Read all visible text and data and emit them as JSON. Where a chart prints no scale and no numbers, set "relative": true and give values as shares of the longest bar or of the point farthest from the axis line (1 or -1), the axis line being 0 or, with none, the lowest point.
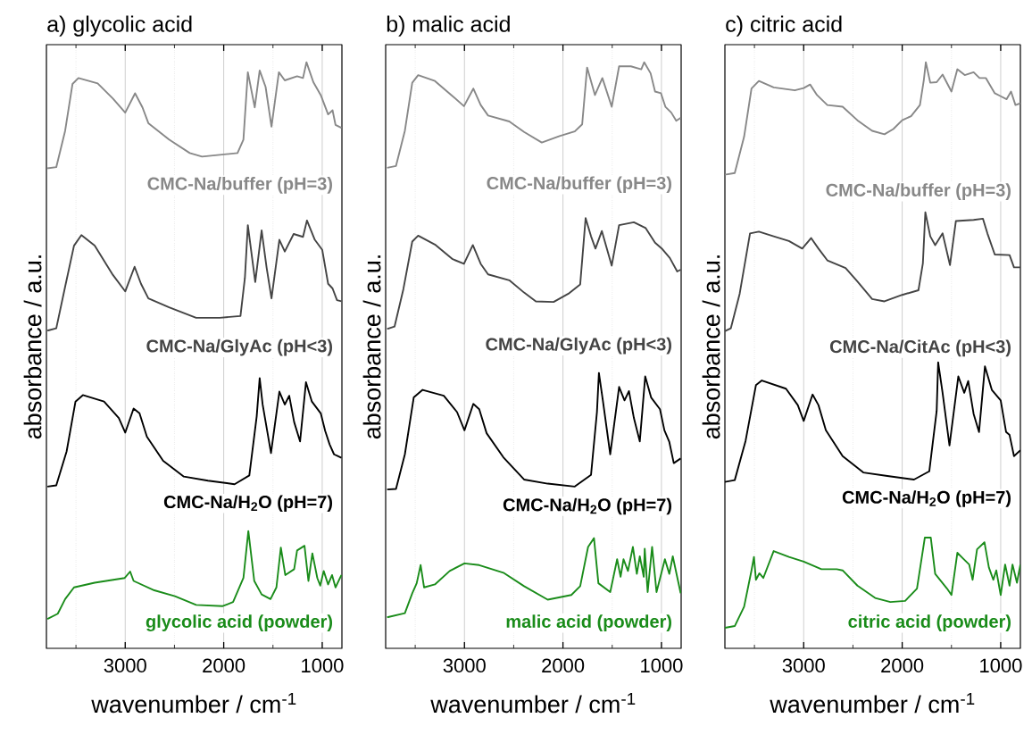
{
  "chart_data": [
    {
      "type": "line",
      "title": "a) glycolic acid",
      "xlabel": "wavenumber / cm$^{-1}$",
      "ylabel": "absorbance / a.u.",
      "relative": true,
      "grid": "x",
      "xlim": [
        3800,
        800
      ],
      "xticks": [
        {
          "value": 3500,
          "label": null
        },
        3000,
        {
          "value": 2500,
          "label": null
        },
        2000,
        {
          "value": 1500,
          "label": null
        },
        1000
      ],
      "series": [
        {
          "name": "CMC-Na/buffer (pH=3)",
          "color": "#888888",
          "x": [
            3790,
            3700,
            3610,
            3535,
            3475,
            3280,
            3125,
            3000,
            2900,
            2825,
            2765,
            2555,
            2345,
            2220,
            1860,
            1800,
            1755,
            1685,
            1635,
            1575,
            1515,
            1440,
            1380,
            1255,
            1195,
            1160,
            1090,
            1015,
            940,
            895,
            865,
            805
          ],
          "values": [
            0.819,
            0.821,
            0.883,
            0.963,
            0.973,
            0.964,
            0.938,
            0.914,
            0.947,
            0.923,
            0.896,
            0.868,
            0.845,
            0.839,
            0.845,
            0.868,
            0.983,
            0.923,
            0.986,
            0.958,
            0.89,
            0.983,
            0.969,
            0.976,
            0.973,
            1.0,
            0.966,
            0.944,
            0.911,
            0.918,
            0.893,
            0.888
          ]
        },
        {
          "name": "CMC-Na/GlyAc (pH<3)",
          "color": "#444444",
          "x": [
            3790,
            3700,
            3610,
            3520,
            3445,
            3310,
            3125,
            3000,
            2905,
            2840,
            2765,
            2555,
            2280,
            2040,
            1830,
            1785,
            1755,
            1680,
            1615,
            1565,
            1515,
            1435,
            1380,
            1290,
            1195,
            1155,
            1075,
            1000,
            940,
            895,
            850,
            805
          ],
          "values": [
            0.542,
            0.546,
            0.617,
            0.687,
            0.705,
            0.687,
            0.637,
            0.609,
            0.651,
            0.622,
            0.597,
            0.582,
            0.564,
            0.564,
            0.567,
            0.632,
            0.722,
            0.625,
            0.713,
            0.65,
            0.597,
            0.697,
            0.677,
            0.707,
            0.702,
            0.73,
            0.697,
            0.68,
            0.622,
            0.614,
            0.594,
            0.592
          ]
        },
        {
          "name": "CMC-Na/H$_{2}$O (pH=7)",
          "color": "#000000",
          "x": [
            3790,
            3700,
            3595,
            3505,
            3430,
            3215,
            3065,
            3000,
            2915,
            2855,
            2780,
            2615,
            2405,
            2160,
            1890,
            1740,
            1665,
            1635,
            1605,
            1520,
            1435,
            1380,
            1335,
            1285,
            1225,
            1165,
            1105,
            1015,
            970,
            925,
            880,
            805
          ],
          "values": [
            0.276,
            0.278,
            0.336,
            0.421,
            0.432,
            0.421,
            0.393,
            0.368,
            0.409,
            0.401,
            0.361,
            0.32,
            0.293,
            0.286,
            0.28,
            0.295,
            0.396,
            0.461,
            0.416,
            0.333,
            0.438,
            0.416,
            0.431,
            0.386,
            0.353,
            0.454,
            0.421,
            0.401,
            0.371,
            0.348,
            0.331,
            0.325
          ]
        },
        {
          "name": "glycolic acid (powder)",
          "color": "#1a8c1a",
          "x": [
            3790,
            3685,
            3610,
            3520,
            3310,
            3005,
            2950,
            2915,
            2705,
            2495,
            2280,
            2010,
            1905,
            1800,
            1750,
            1690,
            1615,
            1525,
            1465,
            1420,
            1375,
            1285,
            1255,
            1180,
            1140,
            1100,
            1050,
            1020,
            985,
            940,
            900,
            865,
            805
          ],
          "values": [
            0.05,
            0.059,
            0.084,
            0.104,
            0.112,
            0.12,
            0.131,
            0.115,
            0.099,
            0.089,
            0.074,
            0.072,
            0.079,
            0.12,
            0.2,
            0.115,
            0.092,
            0.084,
            0.104,
            0.172,
            0.125,
            0.135,
            0.167,
            0.175,
            0.115,
            0.162,
            0.12,
            0.107,
            0.132,
            0.109,
            0.125,
            0.104,
            0.125
          ]
        }
      ]
    },
    {
      "type": "line",
      "title": "b) malic acid",
      "xlabel": "wavenumber / cm$^{-1}$",
      "ylabel": "absorbance / a.u.",
      "relative": true,
      "grid": "x",
      "xlim": [
        3800,
        800
      ],
      "xticks": [
        {
          "value": 3500,
          "label": null
        },
        3000,
        {
          "value": 2500,
          "label": null
        },
        2000,
        {
          "value": 1500,
          "label": null
        },
        1000
      ],
      "series": [
        {
          "name": "CMC-Na/buffer (pH=3)",
          "color": "#888888",
          "x": [
            3785,
            3695,
            3605,
            3530,
            3470,
            3300,
            3120,
            3005,
            2910,
            2835,
            2760,
            2545,
            2395,
            2215,
            2035,
            1880,
            1805,
            1755,
            1675,
            1600,
            1505,
            1430,
            1310,
            1205,
            1175,
            1110,
            1065,
            1005,
            960,
            900,
            850,
            805
          ],
          "values": [
            0.82,
            0.823,
            0.883,
            0.965,
            0.978,
            0.968,
            0.942,
            0.925,
            0.955,
            0.927,
            0.909,
            0.899,
            0.881,
            0.863,
            0.874,
            0.882,
            0.894,
            0.991,
            0.944,
            0.973,
            0.924,
            0.993,
            0.993,
            0.988,
            1.0,
            0.981,
            0.95,
            0.947,
            0.924,
            0.914,
            0.9,
            0.905
          ]
        },
        {
          "name": "CMC-Na/GlyAc (pH<3)",
          "color": "#444444",
          "x": [
            3785,
            3710,
            3620,
            3530,
            3470,
            3300,
            3120,
            3005,
            2915,
            2835,
            2760,
            2545,
            2395,
            2275,
            2095,
            1945,
            1825,
            1770,
            1715,
            1670,
            1605,
            1505,
            1430,
            1280,
            1160,
            1065,
            990,
            915,
            840,
            805
          ],
          "values": [
            0.545,
            0.549,
            0.613,
            0.694,
            0.704,
            0.689,
            0.664,
            0.656,
            0.688,
            0.656,
            0.638,
            0.628,
            0.607,
            0.592,
            0.591,
            0.605,
            0.621,
            0.734,
            0.703,
            0.682,
            0.712,
            0.653,
            0.722,
            0.727,
            0.717,
            0.692,
            0.681,
            0.666,
            0.643,
            0.646
          ]
        },
        {
          "name": "CMC-Na/H$_{2}$O (pH=7)",
          "color": "#000000",
          "x": [
            3785,
            3695,
            3605,
            3515,
            3425,
            3210,
            3075,
            3000,
            2910,
            2850,
            2775,
            2605,
            2395,
            2155,
            1880,
            1715,
            1655,
            1635,
            1595,
            1520,
            1430,
            1375,
            1330,
            1280,
            1220,
            1165,
            1105,
            1015,
            970,
            920,
            875,
            805
          ],
          "values": [
            0.271,
            0.272,
            0.331,
            0.428,
            0.441,
            0.431,
            0.403,
            0.372,
            0.417,
            0.408,
            0.367,
            0.326,
            0.288,
            0.281,
            0.276,
            0.296,
            0.403,
            0.47,
            0.423,
            0.331,
            0.446,
            0.423,
            0.439,
            0.393,
            0.353,
            0.464,
            0.428,
            0.408,
            0.372,
            0.352,
            0.316,
            0.324
          ]
        },
        {
          "name": "malic acid (powder)",
          "color": "#1a8c1a",
          "x": [
            3785,
            3605,
            3530,
            3485,
            3445,
            3410,
            3300,
            3150,
            3000,
            2850,
            2605,
            2395,
            2155,
            1915,
            1825,
            1745,
            1685,
            1640,
            1520,
            1450,
            1415,
            1385,
            1340,
            1290,
            1250,
            1220,
            1180,
            1170,
            1140,
            1095,
            1050,
            965,
            920,
            885,
            805
          ],
          "values": [
            0.053,
            0.06,
            0.094,
            0.111,
            0.142,
            0.104,
            0.109,
            0.132,
            0.145,
            0.142,
            0.129,
            0.106,
            0.083,
            0.091,
            0.106,
            0.173,
            0.188,
            0.111,
            0.096,
            0.152,
            0.122,
            0.152,
            0.132,
            0.173,
            0.127,
            0.157,
            0.122,
            0.17,
            0.096,
            0.173,
            0.096,
            0.152,
            0.127,
            0.157,
            0.094
          ]
        }
      ]
    },
    {
      "type": "line",
      "title": "c) citric acid",
      "xlabel": "wavenumber / cm$^{-1}$",
      "ylabel": "absorbance / a.u.",
      "relative": true,
      "grid": "x",
      "xlim": [
        3800,
        800
      ],
      "xticks": [
        {
          "value": 3500,
          "label": null
        },
        3000,
        {
          "value": 2500,
          "label": null
        },
        2000,
        {
          "value": 1500,
          "label": null
        },
        1000
      ],
      "series": [
        {
          "name": "CMC-Na/buffer (pH=3)",
          "color": "#888888",
          "x": [
            3800,
            3700,
            3605,
            3530,
            3455,
            3305,
            3090,
            3000,
            2935,
            2865,
            2760,
            2605,
            2455,
            2305,
            2180,
            2090,
            2000,
            1910,
            1820,
            1780,
            1760,
            1715,
            1650,
            1590,
            1500,
            1440,
            1365,
            1275,
            1215,
            1150,
            1060,
            1000,
            940,
            895,
            850,
            800
          ],
          "values": [
            0.808,
            0.811,
            0.873,
            0.955,
            0.968,
            0.957,
            0.952,
            0.956,
            0.962,
            0.944,
            0.927,
            0.924,
            0.901,
            0.883,
            0.877,
            0.886,
            0.901,
            0.908,
            0.927,
            0.97,
            1.0,
            0.965,
            0.966,
            0.979,
            0.95,
            0.988,
            0.978,
            0.983,
            0.973,
            0.973,
            0.947,
            0.942,
            0.937,
            0.95,
            0.927,
            0.93
          ]
        },
        {
          "name": "CMC-Na/CitAc (pH<3)",
          "color": "#444444",
          "x": [
            3800,
            3740,
            3650,
            3545,
            3455,
            3305,
            3150,
            3015,
            2925,
            2850,
            2760,
            2575,
            2455,
            2305,
            2180,
            2000,
            1835,
            1790,
            1765,
            1715,
            1665,
            1590,
            1515,
            1455,
            1275,
            1180,
            1135,
            1060,
            910,
            865,
            800
          ],
          "values": [
            0.541,
            0.546,
            0.605,
            0.708,
            0.711,
            0.703,
            0.695,
            0.682,
            0.7,
            0.682,
            0.662,
            0.649,
            0.626,
            0.596,
            0.592,
            0.603,
            0.611,
            0.657,
            0.744,
            0.703,
            0.688,
            0.708,
            0.654,
            0.729,
            0.731,
            0.733,
            0.708,
            0.672,
            0.671,
            0.65,
            0.65
          ]
        },
        {
          "name": "CMC-Na/H$_{2}$O (pH=7)",
          "color": "#000000",
          "x": [
            3800,
            3700,
            3590,
            3485,
            3425,
            3180,
            3060,
            3000,
            2910,
            2850,
            2775,
            2605,
            2395,
            2150,
            1880,
            1725,
            1650,
            1635,
            1590,
            1520,
            1430,
            1370,
            1330,
            1275,
            1220,
            1160,
            1090,
            1000,
            945,
            910,
            865,
            800
          ],
          "values": [
            0.284,
            0.287,
            0.354,
            0.449,
            0.457,
            0.443,
            0.415,
            0.388,
            0.433,
            0.415,
            0.372,
            0.328,
            0.3,
            0.294,
            0.288,
            0.302,
            0.405,
            0.488,
            0.436,
            0.346,
            0.464,
            0.436,
            0.456,
            0.4,
            0.369,
            0.481,
            0.441,
            0.423,
            0.369,
            0.364,
            0.328,
            0.338
          ]
        },
        {
          "name": "citric acid (powder)",
          "color": "#1a8c1a",
          "x": [
            3800,
            3700,
            3605,
            3530,
            3505,
            3485,
            3450,
            3410,
            3305,
            3150,
            3000,
            2820,
            2665,
            2605,
            2455,
            2275,
            2120,
            1970,
            1850,
            1770,
            1710,
            1665,
            1545,
            1500,
            1440,
            1380,
            1320,
            1285,
            1240,
            1165,
            1120,
            1075,
            1045,
            1000,
            955,
            910,
            880,
            835,
            800
          ],
          "values": [
            0.035,
            0.038,
            0.071,
            0.133,
            0.156,
            0.117,
            0.128,
            0.12,
            0.166,
            0.156,
            0.148,
            0.135,
            0.135,
            0.133,
            0.107,
            0.086,
            0.079,
            0.081,
            0.102,
            0.189,
            0.189,
            0.127,
            0.102,
            0.091,
            0.163,
            0.153,
            0.143,
            0.117,
            0.169,
            0.181,
            0.138,
            0.117,
            0.133,
            0.091,
            0.143,
            0.107,
            0.143,
            0.112,
            0.143
          ]
        }
      ]
    }
  ]
}
